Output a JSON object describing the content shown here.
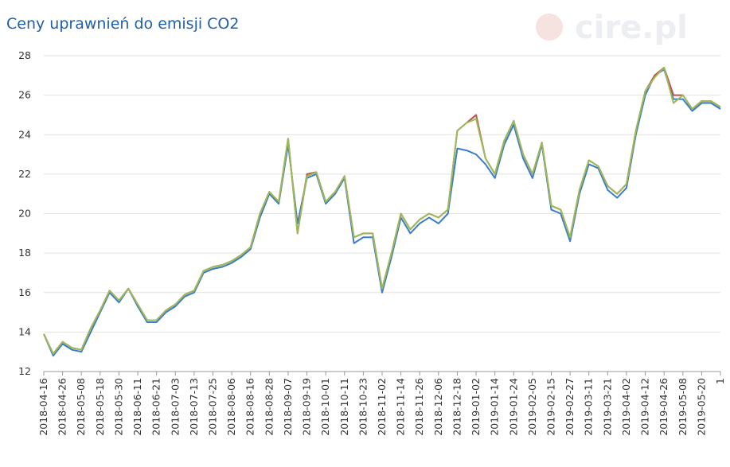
{
  "chart_data": {
    "type": "line",
    "title": "Ceny uprawnień do emisji CO2",
    "watermark": "cire.pl",
    "categories": [
      "2018-04-16",
      null,
      "2018-04-26",
      null,
      "2018-05-08",
      null,
      "2018-05-18",
      null,
      "2018-05-30",
      null,
      "2018-06-11",
      null,
      "2018-06-21",
      null,
      "2018-07-03",
      null,
      "2018-07-13",
      null,
      "2018-07-25",
      null,
      "2018-08-06",
      null,
      "2018-08-16",
      null,
      "2018-08-28",
      null,
      "2018-09-07",
      null,
      "2018-09-19",
      null,
      "2018-10-01",
      null,
      "2018-10-11",
      null,
      "2018-10-23",
      null,
      "2018-11-02",
      null,
      "2018-11-14",
      null,
      "2018-11-26",
      null,
      "2018-12-06",
      null,
      "2018-12-18",
      null,
      "2019-01-02",
      null,
      "2019-01-14",
      null,
      "2019-01-24",
      null,
      "2019-02-05",
      null,
      "2019-02-15",
      null,
      "2019-02-27",
      null,
      "2019-03-11",
      null,
      "2019-03-21",
      null,
      "2019-04-02",
      null,
      "2019-04-12",
      null,
      "2019-04-26",
      null,
      "2019-05-08",
      null,
      "2019-05-20",
      null,
      "1"
    ],
    "series": [
      {
        "color": "#3a7dc9",
        "values": [
          13.9,
          12.8,
          13.4,
          13.1,
          13.0,
          14.0,
          15.0,
          16.0,
          15.5,
          16.2,
          15.3,
          14.5,
          14.5,
          15.0,
          15.3,
          15.8,
          16.0,
          17.0,
          17.2,
          17.3,
          17.5,
          17.8,
          18.2,
          19.8,
          21.0,
          20.5,
          23.5,
          19.5,
          21.8,
          22.0,
          20.5,
          21.0,
          21.8,
          18.5,
          18.8,
          18.8,
          16.0,
          17.8,
          19.8,
          19.0,
          19.5,
          19.8,
          19.5,
          20.0,
          23.3,
          23.2,
          23.0,
          22.5,
          21.8,
          23.5,
          24.5,
          22.8,
          21.8,
          23.5,
          20.2,
          20.0,
          18.6,
          21.0,
          22.5,
          22.3,
          21.2,
          20.8,
          21.3,
          24.0,
          26.0,
          27.0,
          27.3,
          25.8,
          25.8,
          25.2,
          25.6,
          25.6,
          25.3
        ]
      },
      {
        "color": "#c0504d",
        "values": [
          13.9,
          12.9,
          13.5,
          13.2,
          13.1,
          14.2,
          15.1,
          16.1,
          15.6,
          16.2,
          15.4,
          14.6,
          14.6,
          15.1,
          15.4,
          15.9,
          16.1,
          17.1,
          17.3,
          17.4,
          17.6,
          17.9,
          18.3,
          20.0,
          21.1,
          20.6,
          23.8,
          19.0,
          22.0,
          22.1,
          20.6,
          21.1,
          21.9,
          18.8,
          19.0,
          19.0,
          16.2,
          18.0,
          20.0,
          19.2,
          19.7,
          20.0,
          19.8,
          20.2,
          24.2,
          24.6,
          25.0,
          22.8,
          22.0,
          23.7,
          24.7,
          23.0,
          22.0,
          23.6,
          20.4,
          20.2,
          18.8,
          21.2,
          22.7,
          22.4,
          21.4,
          21.0,
          21.5,
          24.2,
          26.2,
          27.0,
          27.4,
          26.0,
          26.0,
          25.3,
          25.7,
          25.7,
          25.4
        ]
      },
      {
        "color": "#9bbb59",
        "values": [
          13.9,
          12.9,
          13.5,
          13.2,
          13.1,
          14.2,
          15.1,
          16.1,
          15.6,
          16.2,
          15.4,
          14.6,
          14.6,
          15.1,
          15.4,
          15.9,
          16.1,
          17.1,
          17.3,
          17.4,
          17.6,
          17.9,
          18.3,
          20.0,
          21.1,
          20.6,
          23.8,
          19.0,
          21.9,
          22.1,
          20.6,
          21.1,
          21.9,
          18.8,
          19.0,
          19.0,
          16.2,
          18.0,
          20.0,
          19.2,
          19.7,
          20.0,
          19.8,
          20.2,
          24.2,
          24.6,
          24.8,
          22.8,
          22.0,
          23.7,
          24.7,
          23.0,
          22.0,
          23.6,
          20.4,
          20.2,
          18.8,
          21.2,
          22.7,
          22.4,
          21.4,
          21.0,
          21.5,
          24.2,
          26.2,
          26.9,
          27.4,
          25.6,
          26.0,
          25.3,
          25.7,
          25.7,
          25.4
        ]
      }
    ],
    "ylim": [
      12,
      28
    ],
    "yticks": [
      12,
      14,
      16,
      18,
      20,
      22,
      24,
      26,
      28
    ],
    "grid": true
  }
}
